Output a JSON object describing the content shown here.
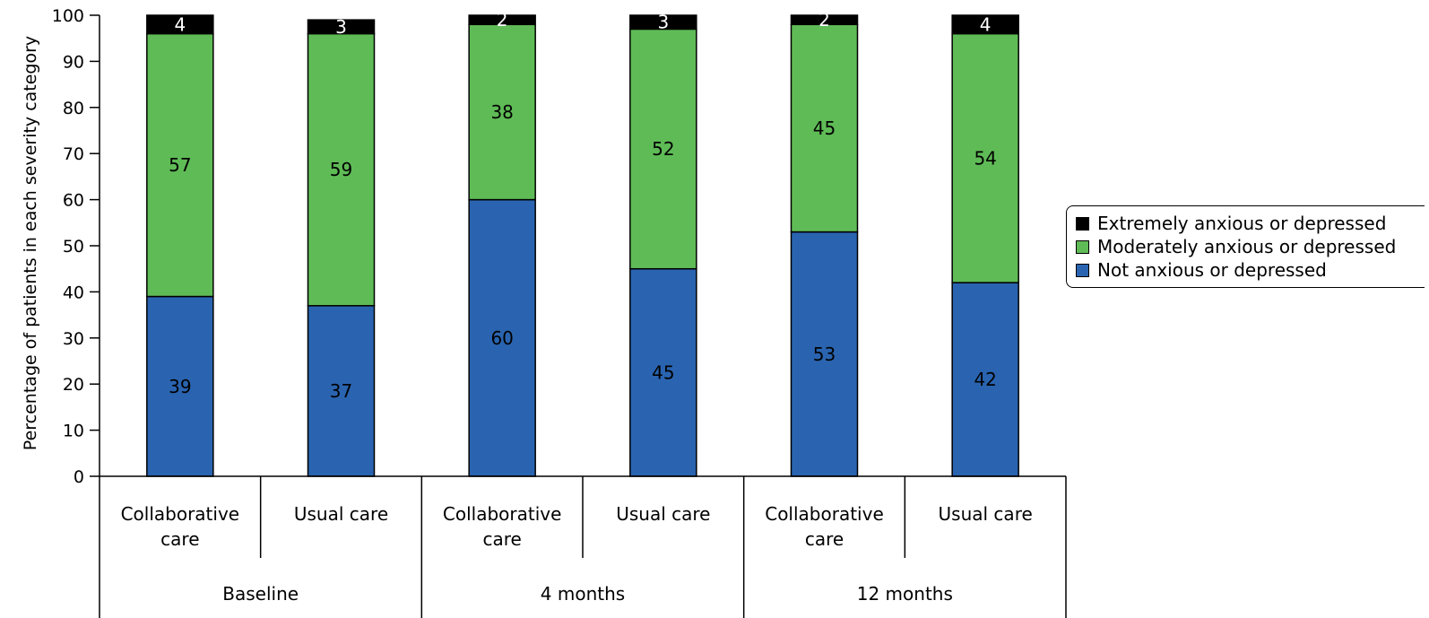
{
  "chart_data": {
    "type": "bar",
    "stacked": true,
    "title": "",
    "ylabel": "Percentage of patients in each severity category",
    "ylim": [
      0,
      100
    ],
    "yticks": [
      0,
      10,
      20,
      30,
      40,
      50,
      60,
      70,
      80,
      90,
      100
    ],
    "groups": [
      "Baseline",
      "4 months",
      "12 months"
    ],
    "categories": [
      {
        "label": "Collaborative care",
        "lines": [
          "Collaborative",
          "care"
        ],
        "group": "Baseline"
      },
      {
        "label": "Usual care",
        "lines": [
          "Usual care"
        ],
        "group": "Baseline"
      },
      {
        "label": "Collaborative care",
        "lines": [
          "Collaborative",
          "care"
        ],
        "group": "4 months"
      },
      {
        "label": "Usual care",
        "lines": [
          "Usual care"
        ],
        "group": "4 months"
      },
      {
        "label": "Collaborative care",
        "lines": [
          "Collaborative",
          "care"
        ],
        "group": "12 months"
      },
      {
        "label": "Usual care",
        "lines": [
          "Usual care"
        ],
        "group": "12 months"
      }
    ],
    "series": [
      {
        "name": "Not anxious or depressed",
        "color": "#2a64b0",
        "label_color": "#000000",
        "values": [
          39,
          37,
          60,
          45,
          53,
          42
        ]
      },
      {
        "name": "Moderately anxious or depressed",
        "color": "#5fbb56",
        "label_color": "#000000",
        "values": [
          57,
          59,
          38,
          52,
          45,
          54
        ]
      },
      {
        "name": "Extremely anxious or depressed",
        "color": "#000000",
        "label_color": "#ffffff",
        "values": [
          4,
          3,
          2,
          3,
          2,
          4
        ]
      }
    ],
    "legend": {
      "position": "right",
      "order": [
        "Extremely anxious or depressed",
        "Moderately anxious or depressed",
        "Not anxious or depressed"
      ]
    },
    "grid": false
  }
}
